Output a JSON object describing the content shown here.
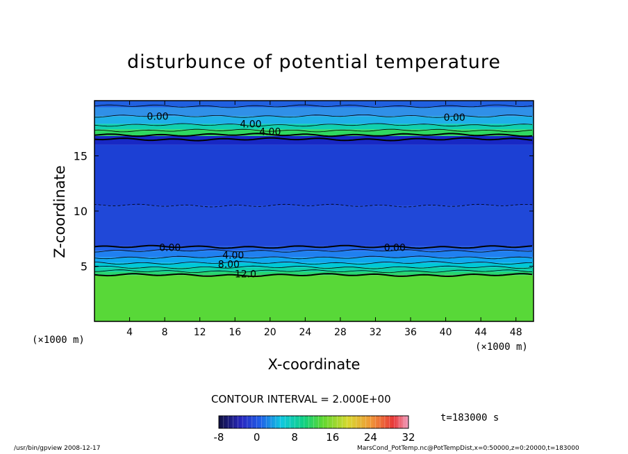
{
  "chart_data": {
    "type": "heatmap",
    "title": "disturbunce of potential temperature",
    "xlabel": "X-coordinate",
    "ylabel": "Z-coordinate",
    "x_unit_left": "(×1000 m)",
    "x_unit_right": "(×1000 m)",
    "xlim": [
      0,
      50
    ],
    "ylim": [
      0,
      20
    ],
    "x_ticks": [
      4,
      8,
      12,
      16,
      20,
      24,
      28,
      32,
      36,
      40,
      44,
      48
    ],
    "x_tick_labels": [
      "4",
      "8",
      "12",
      "16",
      "20",
      "24",
      "28",
      "32",
      "36",
      "40",
      "44",
      "48"
    ],
    "y_ticks": [
      5,
      10,
      15
    ],
    "y_tick_labels": [
      "5",
      "10",
      "15"
    ],
    "layers": [
      {
        "z0": 0,
        "z1": 4.2,
        "value": 12,
        "color": "#58d838"
      },
      {
        "z0": 4.2,
        "z1": 4.5,
        "value": 10,
        "color": "#28d470"
      },
      {
        "z0": 4.5,
        "z1": 4.9,
        "value": 8,
        "color": "#10d0a8"
      },
      {
        "z0": 4.9,
        "z1": 5.3,
        "value": 6,
        "color": "#00c8d8"
      },
      {
        "z0": 5.3,
        "z1": 5.8,
        "value": 4,
        "color": "#10a8f0"
      },
      {
        "z0": 5.8,
        "z1": 6.4,
        "value": 2,
        "color": "#2080f0"
      },
      {
        "z0": 6.4,
        "z1": 6.8,
        "value": 0,
        "color": "#2060e8"
      },
      {
        "z0": 6.8,
        "z1": 10.5,
        "value": -2,
        "color": "#2048d8"
      },
      {
        "z0": 10.5,
        "z1": 16.0,
        "value": -2,
        "color": "#1c40d4"
      },
      {
        "z0": 16.0,
        "z1": 16.8,
        "value": -4,
        "color": "#1828c4"
      },
      {
        "z0": 16.8,
        "z1": 17.4,
        "value": 12,
        "color": "#30d860"
      },
      {
        "z0": 17.4,
        "z1": 17.9,
        "value": 8,
        "color": "#10d0b0"
      },
      {
        "z0": 17.9,
        "z1": 18.6,
        "value": 4,
        "color": "#20b0e8"
      },
      {
        "z0": 18.6,
        "z1": 19.4,
        "value": 2,
        "color": "#3090e8"
      },
      {
        "z0": 19.4,
        "z1": 20,
        "value": 0,
        "color": "#2060e0"
      }
    ],
    "contour_lines": [
      {
        "z": 4.2,
        "weight": "thick"
      },
      {
        "z": 4.55,
        "weight": "thin"
      },
      {
        "z": 4.9,
        "weight": "thin"
      },
      {
        "z": 5.3,
        "weight": "thin"
      },
      {
        "z": 5.8,
        "weight": "thin"
      },
      {
        "z": 6.4,
        "weight": "thin"
      },
      {
        "z": 6.75,
        "weight": "thick"
      },
      {
        "z": 10.5,
        "weight": "dashed"
      },
      {
        "z": 16.5,
        "weight": "thick"
      },
      {
        "z": 16.9,
        "weight": "thick"
      },
      {
        "z": 17.3,
        "weight": "thin"
      },
      {
        "z": 17.8,
        "weight": "thin"
      },
      {
        "z": 18.6,
        "weight": "thin"
      },
      {
        "z": 19.5,
        "weight": "thin"
      }
    ],
    "contour_labels": [
      {
        "text": "0.00",
        "x": 7.2,
        "z": 18.6
      },
      {
        "text": "4.00",
        "x": 17.8,
        "z": 17.9
      },
      {
        "text": "4.00",
        "x": 20,
        "z": 17.2
      },
      {
        "text": "0.00",
        "x": 41,
        "z": 18.5
      },
      {
        "text": "0.00",
        "x": 8.6,
        "z": 6.7
      },
      {
        "text": "4.00",
        "x": 15.8,
        "z": 6.0
      },
      {
        "text": "8.00",
        "x": 15.3,
        "z": 5.2
      },
      {
        "text": "12.0",
        "x": 17.2,
        "z": 4.3
      },
      {
        "text": "0.00",
        "x": 34.2,
        "z": 6.7
      }
    ],
    "contour_interval_text": "CONTOUR INTERVAL = 2.000E+00",
    "time_text": "t=183000 s",
    "colorbar": {
      "min": -8,
      "max": 32,
      "tick_labels": [
        "-8",
        "0",
        "8",
        "16",
        "24",
        "32"
      ],
      "tick_values": [
        -8,
        0,
        8,
        16,
        24,
        32
      ]
    }
  },
  "footer": {
    "left": "/usr/bin/gpview   2008-12-17",
    "right": "MarsCond_PotTemp.nc@PotTempDist,x=0:50000,z=0:20000,t=183000"
  }
}
